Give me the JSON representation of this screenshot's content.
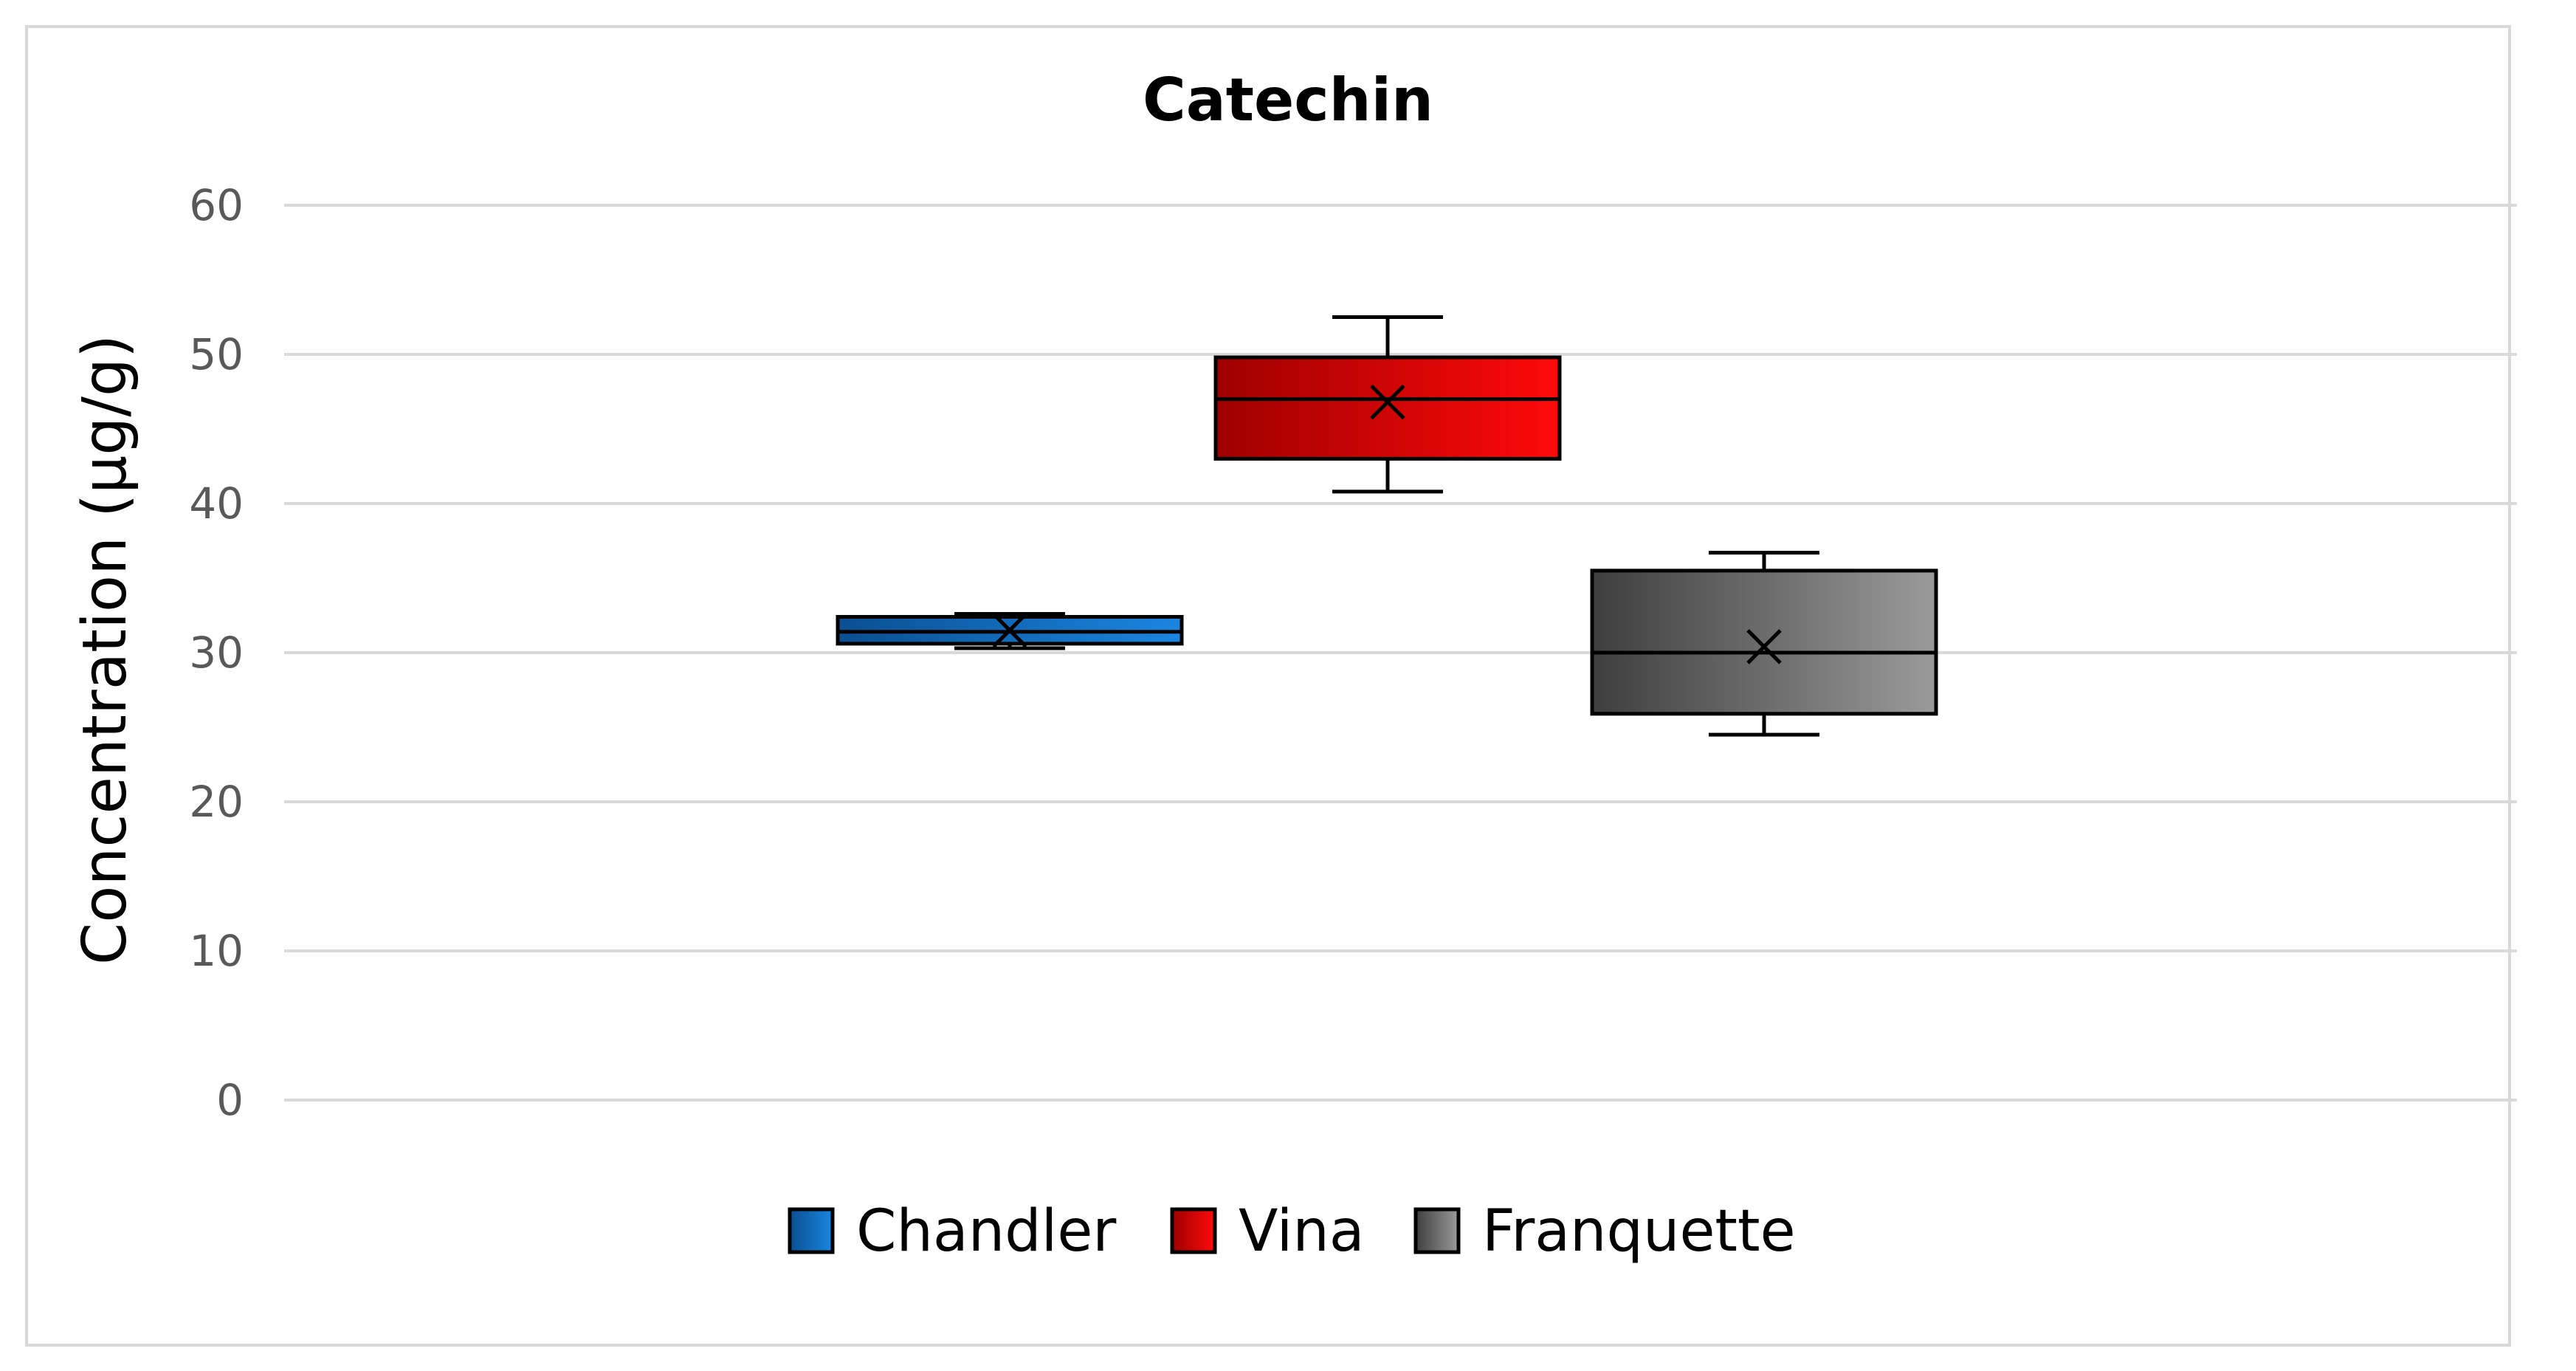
{
  "chart_data": {
    "type": "box",
    "title": "Catechin",
    "xlabel": "",
    "ylabel": "Concentration (µg/g)",
    "ylim": [
      0,
      60
    ],
    "yticks": [
      0,
      10,
      20,
      30,
      40,
      50,
      60
    ],
    "grid": true,
    "legend_position": "bottom",
    "series": [
      {
        "name": "Chandler",
        "color": "#0070c0",
        "min": 30.3,
        "q1": 30.6,
        "median": 31.4,
        "q3": 32.4,
        "max": 32.6,
        "mean": 31.5
      },
      {
        "name": "Vina",
        "color": "#e00000",
        "min": 40.8,
        "q1": 43.0,
        "median": 47.0,
        "q3": 49.8,
        "max": 52.5,
        "mean": 46.8
      },
      {
        "name": "Franquette",
        "color": "#6e6e6e",
        "min": 24.5,
        "q1": 25.9,
        "median": 30.0,
        "q3": 35.5,
        "max": 36.7,
        "mean": 30.4
      }
    ]
  }
}
